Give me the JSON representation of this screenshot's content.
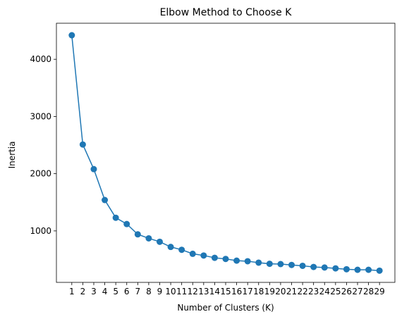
{
  "chart_data": {
    "type": "line",
    "title": "Elbow Method to Choose K",
    "xlabel": "Number of Clusters (K)",
    "ylabel": "Inertia",
    "x": [
      1,
      2,
      3,
      4,
      5,
      6,
      7,
      8,
      9,
      10,
      11,
      12,
      13,
      14,
      15,
      16,
      17,
      18,
      19,
      20,
      21,
      22,
      23,
      24,
      25,
      26,
      27,
      28,
      29
    ],
    "x_tick_labels": [
      "1",
      "2",
      "3",
      "4",
      "5",
      "6",
      "7",
      "8",
      "9",
      "10",
      "11",
      "12",
      "13",
      "14",
      "15",
      "16",
      "17",
      "18",
      "19",
      "20",
      "21",
      "22",
      "23",
      "24",
      "25",
      "26",
      "27",
      "28",
      "29"
    ],
    "series": [
      {
        "values": [
          4420,
          2510,
          2080,
          1540,
          1230,
          1120,
          940,
          870,
          810,
          720,
          670,
          600,
          570,
          530,
          510,
          480,
          470,
          445,
          425,
          420,
          405,
          390,
          370,
          360,
          345,
          330,
          320,
          320,
          305
        ],
        "color": "#1f77b4",
        "marker": "circle"
      }
    ],
    "y_ticks": [
      1000,
      2000,
      3000,
      4000
    ],
    "y_tick_labels": [
      "1000",
      "2000",
      "3000",
      "4000"
    ],
    "xlim": [
      -0.4,
      30.4
    ],
    "ylim": [
      100,
      4630
    ],
    "grid": false,
    "legend": false
  }
}
